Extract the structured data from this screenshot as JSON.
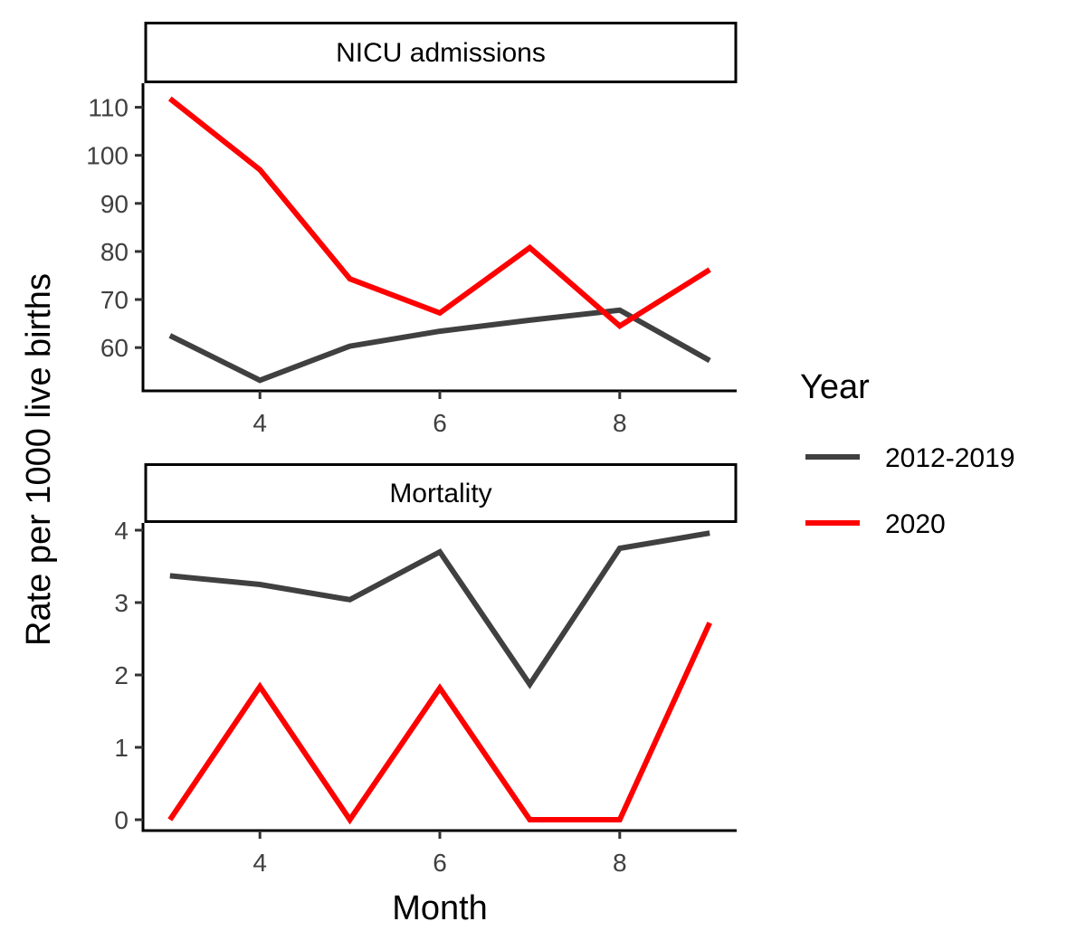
{
  "chart_data": {
    "type": "line",
    "xlabel": "Month",
    "ylabel": "Rate per 1000 live births",
    "legend": {
      "title": "Year",
      "position": "right",
      "entries": [
        {
          "name": "2012-2019",
          "color": "#404040"
        },
        {
          "name": "2020",
          "color": "#ff0000"
        }
      ]
    },
    "panels": [
      {
        "strip": "NICU admissions",
        "x": [
          3,
          4,
          5,
          6,
          7,
          8,
          9
        ],
        "xlim": [
          2.7,
          9.3
        ],
        "xticks": [
          4,
          6,
          8
        ],
        "ylim": [
          51,
          115
        ],
        "yticks": [
          60,
          70,
          80,
          90,
          100,
          110
        ],
        "series": [
          {
            "name": "2012-2019",
            "values": [
              62.5,
              53.2,
              60.3,
              63.4,
              65.7,
              67.8,
              57.3
            ]
          },
          {
            "name": "2020",
            "values": [
              111.8,
              97.0,
              74.3,
              67.2,
              80.8,
              64.5,
              76.2
            ]
          }
        ]
      },
      {
        "strip": "Mortality",
        "x": [
          3,
          4,
          5,
          6,
          7,
          8,
          9
        ],
        "xlim": [
          2.7,
          9.3
        ],
        "xticks": [
          4,
          6,
          8
        ],
        "ylim": [
          -0.15,
          4.1
        ],
        "yticks": [
          0,
          1,
          2,
          3,
          4
        ],
        "series": [
          {
            "name": "2012-2019",
            "values": [
              3.37,
              3.25,
              3.04,
              3.7,
              1.87,
              3.75,
              3.96
            ]
          },
          {
            "name": "2020",
            "values": [
              0.0,
              1.84,
              0.0,
              1.82,
              0.0,
              0.0,
              2.72
            ]
          }
        ]
      }
    ]
  }
}
